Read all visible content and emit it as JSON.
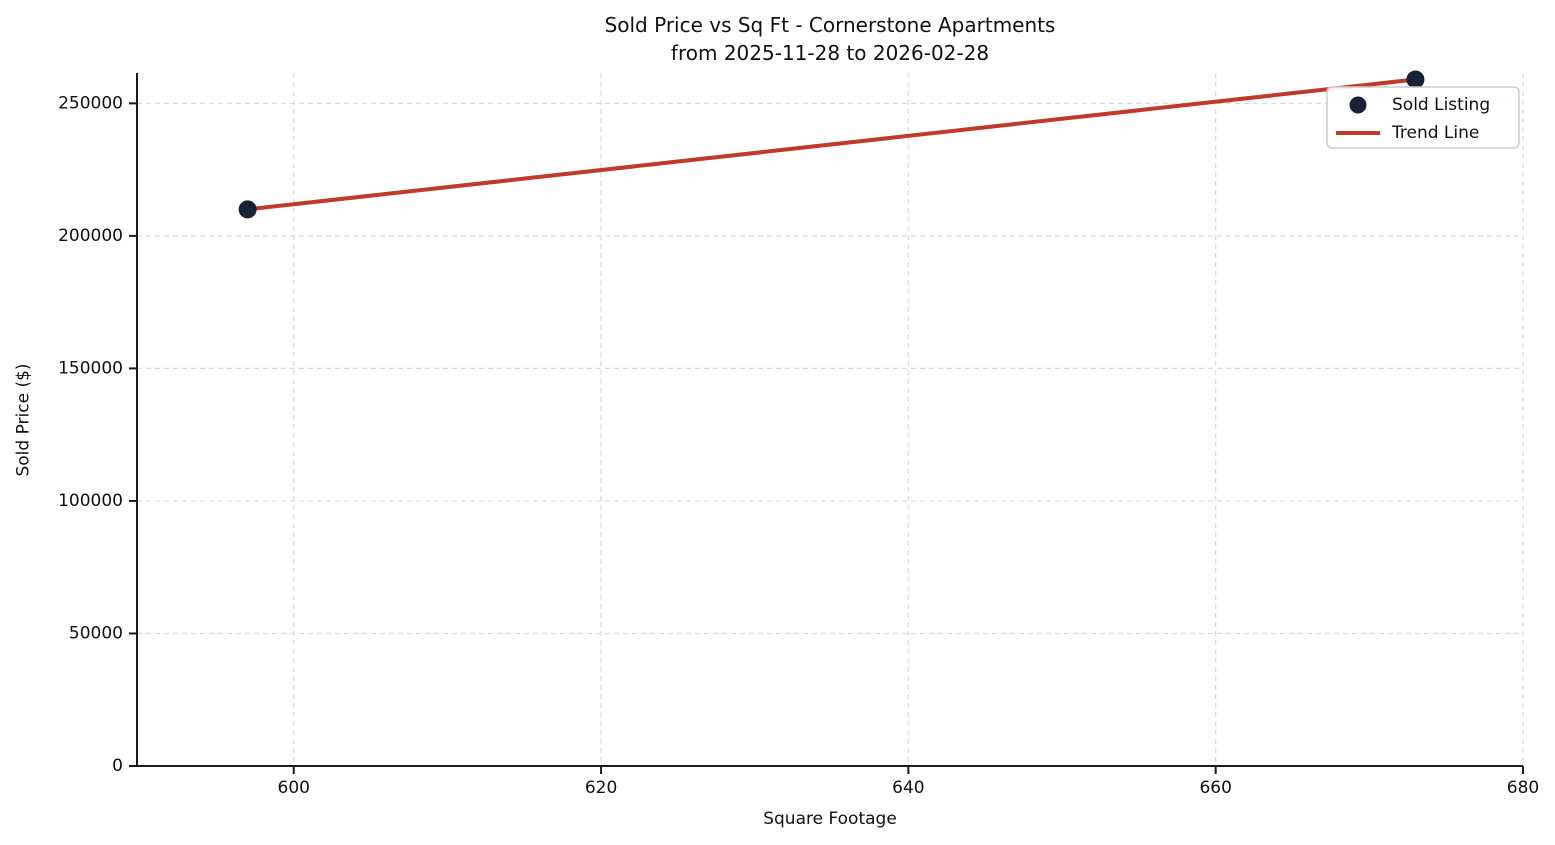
{
  "chart_data": {
    "type": "scatter",
    "title": "Sold Price vs Sq Ft - Cornerstone Apartments",
    "subtitle": "from 2025-11-28 to 2026-02-28",
    "xlabel": "Square Footage",
    "ylabel": "Sold Price ($)",
    "xlim": [
      589.8,
      680.0
    ],
    "ylim": [
      0,
      261450
    ],
    "xticks": [
      600,
      620,
      640,
      660,
      680
    ],
    "yticks": [
      0,
      50000,
      100000,
      150000,
      200000,
      250000
    ],
    "grid": true,
    "grid_style": "dashed",
    "legend_position": "upper right",
    "series": [
      {
        "name": "Sold Listing",
        "kind": "scatter",
        "x": [
          597,
          673
        ],
        "y": [
          210000,
          259000
        ],
        "color": "#152238",
        "marker": "circle"
      },
      {
        "name": "Trend Line",
        "kind": "line",
        "x": [
          597,
          673
        ],
        "y": [
          210000,
          259000
        ],
        "color": "#c0392b"
      }
    ]
  },
  "legend": {
    "items": [
      {
        "label": "Sold Listing",
        "marker": "dot-icon"
      },
      {
        "label": "Trend Line",
        "marker": "line-icon"
      }
    ]
  },
  "colors": {
    "point": "#152238",
    "trend": "#c0392b",
    "grid": "#d9d9d9",
    "axis": "#1a1a1a",
    "text": "#111111",
    "legend_border": "#cccccc",
    "background": "#ffffff"
  }
}
